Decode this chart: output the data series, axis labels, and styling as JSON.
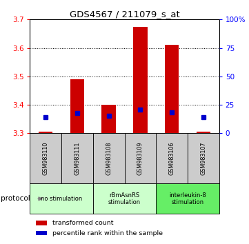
{
  "title": "GDS4567 / 211079_s_at",
  "samples": [
    "GSM983110",
    "GSM983111",
    "GSM983108",
    "GSM983109",
    "GSM983106",
    "GSM983107"
  ],
  "transformed_counts": [
    3.305,
    3.49,
    3.4,
    3.675,
    3.61,
    3.305
  ],
  "baseline": 3.3,
  "percentile_y": [
    3.357,
    3.37,
    3.362,
    3.383,
    3.372,
    3.357
  ],
  "ylim": [
    3.3,
    3.7
  ],
  "ylim_right": [
    0,
    100
  ],
  "yticks_left": [
    3.3,
    3.4,
    3.5,
    3.6,
    3.7
  ],
  "yticks_right": [
    0,
    25,
    50,
    75,
    100
  ],
  "groups": [
    {
      "label": "no stimulation",
      "start": 0,
      "end": 2,
      "color": "#ccffcc"
    },
    {
      "label": "rBmAsnRS\nstimulation",
      "start": 2,
      "end": 4,
      "color": "#ccffcc"
    },
    {
      "label": "interleukin-8\nstimulation",
      "start": 4,
      "end": 6,
      "color": "#66ee66"
    }
  ],
  "bar_color": "#cc0000",
  "point_color": "#0000cc",
  "sample_box_color": "#cccccc",
  "legend_red": "transformed count",
  "legend_blue": "percentile rank within the sample",
  "protocol_label": "protocol"
}
